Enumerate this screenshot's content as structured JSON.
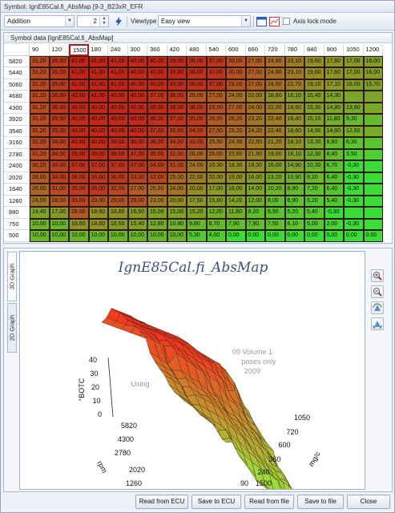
{
  "window": {
    "title": "Symbol: IgnE85Cal.fi_AbsMap [9-3_B23xR_EFR"
  },
  "toolbar": {
    "operation": "Addition",
    "value": "2",
    "viewtype_label": "Viewtype",
    "viewtype_value": "Easy view",
    "axis_lock_label": "Axis lock mode"
  },
  "grid": {
    "caption": "Symbol data [IgnE85Cal.fi_AbsMap]",
    "selected_column": 2,
    "columns": [
      "90",
      "120",
      "1500",
      "180",
      "240",
      "300",
      "360",
      "420",
      "480",
      "540",
      "600",
      "660",
      "720",
      "780",
      "840",
      "900",
      "1050",
      "1200"
    ],
    "rows": [
      {
        "rpm": "5820",
        "cells": [
          "31,20",
          "35,00",
          "41,00",
          "41,00",
          "41,00",
          "40,00",
          "40,00",
          "39,00",
          "38,00",
          "37,00",
          "30,00",
          "27,00",
          "24,80",
          "23,10",
          "19,60",
          "17,60",
          "17,00",
          "16,00"
        ]
      },
      {
        "rpm": "5440",
        "cells": [
          "31,20",
          "35,00",
          "41,00",
          "41,00",
          "41,00",
          "40,00",
          "40,00",
          "39,00",
          "38,00",
          "37,00",
          "30,00",
          "27,00",
          "24,80",
          "23,10",
          "19,60",
          "17,60",
          "17,00",
          "16,00"
        ]
      },
      {
        "rpm": "5060",
        "cells": [
          "31,20",
          "35,00",
          "41,00",
          "41,00",
          "41,00",
          "40,00",
          "40,00",
          "39,00",
          "38,00",
          "37,00",
          "29,00",
          "27,00",
          "24,50",
          "22,70",
          "19,10",
          "17,10",
          "16,00",
          "15,70"
        ]
      },
      {
        "rpm": "4680",
        "cells": [
          "31,20",
          "36,00",
          "40,00",
          "41,00",
          "40,00",
          "40,00",
          "37,00",
          "36,00",
          "28,00",
          "27,00",
          "24,00",
          "22,00",
          "18,60",
          "16,10",
          "15,40",
          "14,30",
          "",
          ""
        ]
      },
      {
        "rpm": "4300",
        "cells": [
          "31,20",
          "36,00",
          "40,00",
          "40,00",
          "40,00",
          "40,00",
          "39,00",
          "38,00",
          "36,00",
          "29,00",
          "27,00",
          "24,00",
          "22,00",
          "18,60",
          "15,30",
          "14,80",
          "13,80",
          ""
        ]
      },
      {
        "rpm": "3920",
        "cells": [
          "31,20",
          "35,00",
          "40,00",
          "40,00",
          "40,00",
          "40,00",
          "38,00",
          "37,00",
          "35,00",
          "28,00",
          "26,20",
          "23,20",
          "22,40",
          "18,40",
          "15,10",
          "11,80",
          "9,30",
          ""
        ]
      },
      {
        "rpm": "3540",
        "cells": [
          "31,20",
          "35,00",
          "40,00",
          "40,00",
          "40,00",
          "40,00",
          "37,00",
          "35,00",
          "34,00",
          "27,50",
          "25,20",
          "24,20",
          "22,40",
          "18,60",
          "14,90",
          "14,80",
          "12,60",
          ""
        ]
      },
      {
        "rpm": "3160",
        "cells": [
          "31,20",
          "34,00",
          "40,00",
          "40,00",
          "39,00",
          "38,00",
          "36,00",
          "34,00",
          "33,00",
          "25,50",
          "24,30",
          "22,50",
          "21,20",
          "18,10",
          "13,30",
          "8,80",
          "6,30",
          ""
        ]
      },
      {
        "rpm": "2780",
        "cells": [
          "31,20",
          "34,00",
          "39,00",
          "39,00",
          "38,00",
          "37,00",
          "35,00",
          "32,00",
          "26,00",
          "25,00",
          "22,60",
          "21,60",
          "19,00",
          "16,10",
          "12,30",
          "8,40",
          "3,50",
          ""
        ]
      },
      {
        "rpm": "2400",
        "cells": [
          "30,20",
          "34,00",
          "37,00",
          "37,00",
          "37,00",
          "37,00",
          "34,00",
          "31,00",
          "24,00",
          "20,30",
          "19,30",
          "18,30",
          "16,00",
          "14,90",
          "10,30",
          "6,70",
          "-0,30",
          ""
        ]
      },
      {
        "rpm": "2020",
        "cells": [
          "28,00",
          "34,00",
          "36,00",
          "36,00",
          "36,00",
          "33,00",
          "32,00",
          "25,00",
          "22,00",
          "20,00",
          "19,00",
          "16,00",
          "13,20",
          "10,90",
          "9,20",
          "6,40",
          "-0,30",
          ""
        ]
      },
      {
        "rpm": "1640",
        "cells": [
          "26,00",
          "31,00",
          "35,00",
          "36,00",
          "32,00",
          "27,00",
          "25,00",
          "24,00",
          "20,00",
          "17,00",
          "16,00",
          "14,00",
          "10,20",
          "8,90",
          "7,20",
          "6,40",
          "-0,30",
          ""
        ]
      },
      {
        "rpm": "1260",
        "cells": [
          "24,00",
          "28,00",
          "33,00",
          "29,00",
          "29,00",
          "29,00",
          "23,00",
          "20,00",
          "17,50",
          "15,80",
          "14,20",
          "12,00",
          "8,00",
          "6,90",
          "5,20",
          "5,40",
          "-0,30",
          ""
        ]
      },
      {
        "rpm": "880",
        "cells": [
          "14,40",
          "17,00",
          "28,00",
          "18,60",
          "18,60",
          "16,50",
          "15,00",
          "15,00",
          "15,20",
          "12,00",
          "11,80",
          "8,20",
          "6,90",
          "5,20",
          "5,40",
          "-0,30",
          "",
          ""
        ]
      },
      {
        "rpm": "750",
        "cells": [
          "10,00",
          "10,00",
          "18,60",
          "18,60",
          "16,50",
          "15,40",
          "12,80",
          "10,80",
          "9,80",
          "8,70",
          "7,90",
          "7,90",
          "7,50",
          "6,10",
          "5,00",
          "2,00",
          "-0,30",
          ""
        ]
      },
      {
        "rpm": "500",
        "cells": [
          "10,00",
          "10,00",
          "10,00",
          "10,00",
          "10,00",
          "10,00",
          "10,00",
          "10,00",
          "5,30",
          "4,00",
          "0,00",
          "0,00",
          "0,00",
          "0,00",
          "0,00",
          "0,00",
          "0,00",
          "0,00"
        ]
      }
    ]
  },
  "graph": {
    "tab_3d": "3D Graph",
    "tab_2d": "2D Graph",
    "title": "IgnE85Cal.fi_AbsMap",
    "z_axis_label": "°BOTC",
    "z_ticks": [
      "40",
      "30",
      "20",
      "10",
      "0"
    ],
    "rpm_axis_label": "rpm",
    "rpm_ticks": [
      "5820",
      "4300",
      "2780",
      "2020",
      "1260"
    ],
    "mgc_axis_label": "mg/c",
    "mgc_ticks": [
      "1050",
      "720",
      "600",
      "360",
      "240",
      "90",
      "1500"
    ],
    "watermark": [
      "09 Volume 1",
      "poses only",
      "2009",
      "Using"
    ]
  },
  "footer": {
    "read_ecu": "Read from ECU",
    "save_ecu": "Save to ECU",
    "read_file": "Read from file",
    "save_file": "Save to file",
    "close": "Close"
  },
  "colors": {
    "hot": "#c0281a",
    "cool": "#36e036",
    "selection": "#a51d1d"
  }
}
